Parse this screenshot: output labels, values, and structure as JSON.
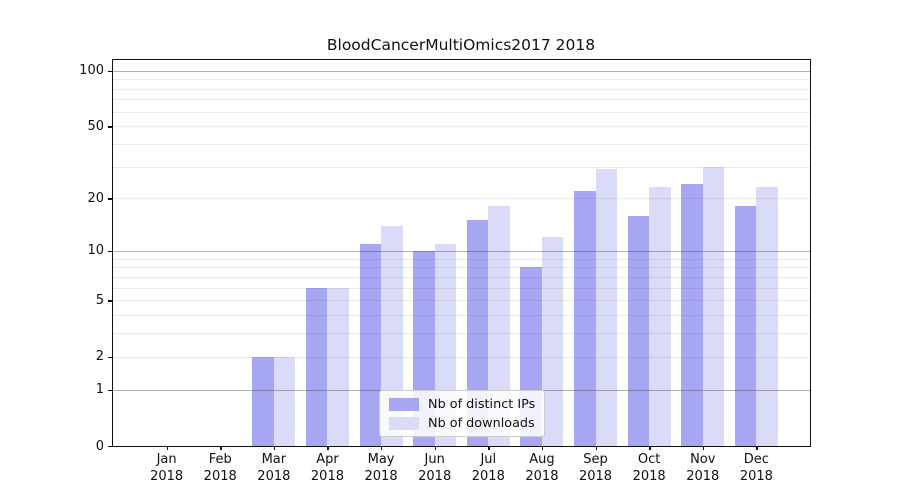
{
  "figure": {
    "title": "BloodCancerMultiOmics2017 2018"
  },
  "chart_data": {
    "type": "bar",
    "title": "BloodCancerMultiOmics2017 2018",
    "categories": [
      "Jan 2018",
      "Feb 2018",
      "Mar 2018",
      "Apr 2018",
      "May 2018",
      "Jun 2018",
      "Jul 2018",
      "Aug 2018",
      "Sep 2018",
      "Oct 2018",
      "Nov 2018",
      "Dec 2018"
    ],
    "series": [
      {
        "name": "Nb of distinct IPs",
        "color": "#a6a6f2",
        "values": [
          0,
          0,
          2,
          6,
          11,
          10,
          15,
          8,
          22,
          16,
          24,
          18
        ]
      },
      {
        "name": "Nb of downloads",
        "color": "#dadaf9",
        "values": [
          0,
          0,
          2,
          6,
          14,
          11,
          18,
          12,
          29,
          23,
          30,
          23
        ]
      }
    ],
    "xlabel": "",
    "ylabel": "",
    "yscale": "log1p",
    "ylim": [
      0,
      114
    ],
    "y_tick_labels": [
      "0",
      "1",
      "2",
      "5",
      "10",
      "20",
      "50",
      "100"
    ],
    "y_tick_values": [
      0,
      1,
      2,
      5,
      10,
      20,
      50,
      100
    ],
    "y_major_gridlines": [
      1,
      10,
      100
    ],
    "y_minor_gridlines": [
      2,
      3,
      4,
      5,
      6,
      7,
      8,
      9,
      20,
      30,
      40,
      50,
      60,
      70,
      80,
      90
    ],
    "grid": true,
    "legend": {
      "position": "lower center",
      "entries": [
        "Nb of distinct IPs",
        "Nb of downloads"
      ]
    }
  }
}
